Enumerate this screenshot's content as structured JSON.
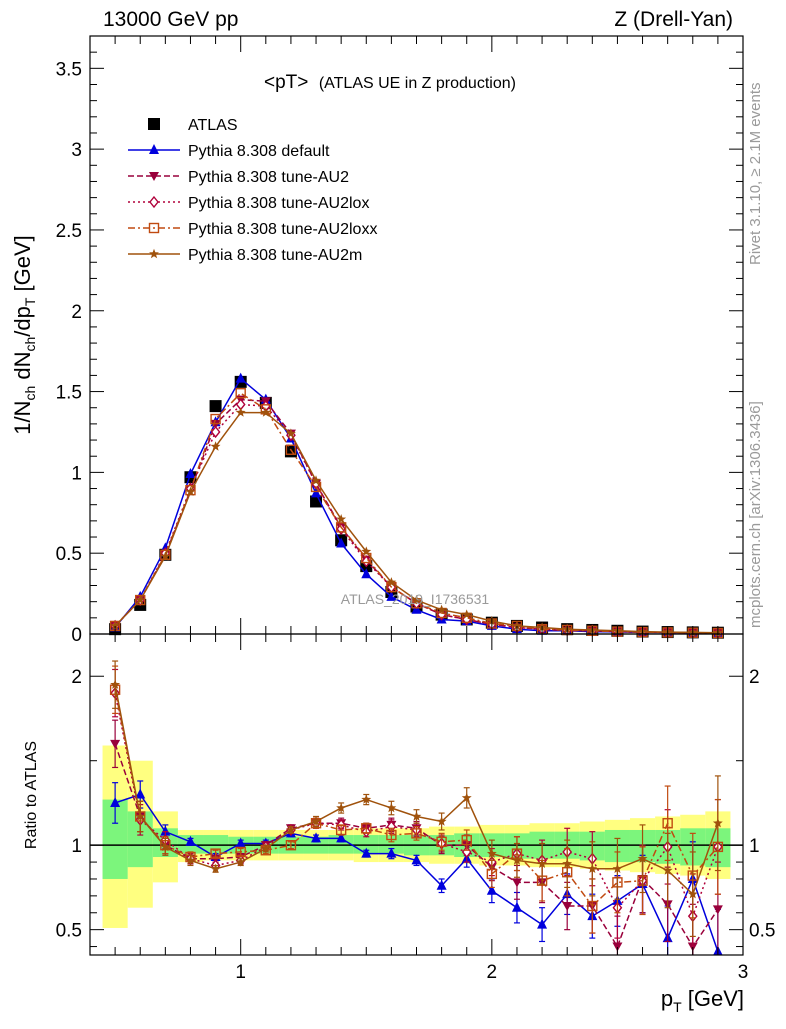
{
  "header": {
    "left": "13000 GeV pp",
    "right": "Z (Drell-Yan)"
  },
  "side": {
    "rivet": "Rivet 3.1.10, ≥ 2.1M events",
    "mcplots": "mcplots.cern.ch [arXiv:1306.3436]"
  },
  "colors": {
    "ATLAS": "#000000",
    "default": "#0000dd",
    "AU2": "#99003b",
    "AU2lox": "#b0003a",
    "AU2loxx": "#c04a10",
    "AU2m": "#a0520c",
    "band_inner": "#7cf57c",
    "band_outer": "#ffff80"
  },
  "chart_data": [
    {
      "type": "line",
      "panel": "main",
      "title": "<pT> (ATLAS UE in Z production)",
      "title_main": "<pT>",
      "title_sub": "(ATLAS UE in Z production)",
      "xlabel": "p_T [GeV]",
      "ylabel": "1/N_ch dN_ch/dp_T [GeV]",
      "xlim": [
        0.4,
        3.0
      ],
      "ylim": [
        0,
        3.7
      ],
      "yticks": [
        0,
        0.5,
        1,
        1.5,
        2,
        2.5,
        3,
        3.5
      ],
      "ytick_labels": [
        "0",
        "0.5",
        "1",
        "1.5",
        "2",
        "2.5",
        "3",
        "3.5"
      ],
      "watermark": "ATLAS_2019_I1736531",
      "x": [
        0.5,
        0.6,
        0.7,
        0.8,
        0.9,
        1.0,
        1.1,
        1.2,
        1.3,
        1.4,
        1.5,
        1.6,
        1.7,
        1.8,
        1.9,
        2.0,
        2.1,
        2.2,
        2.3,
        2.4,
        2.5,
        2.6,
        2.7,
        2.8,
        2.9
      ],
      "series": [
        {
          "key": "ATLAS",
          "name": "ATLAS",
          "style": "data",
          "values": [
            0.03,
            0.18,
            0.49,
            0.97,
            1.41,
            1.56,
            1.43,
            1.13,
            0.82,
            0.58,
            0.42,
            0.26,
            0.17,
            0.12,
            0.09,
            0.07,
            0.05,
            0.04,
            0.03,
            0.025,
            0.02,
            0.015,
            0.012,
            0.01,
            0.008
          ]
        },
        {
          "key": "default",
          "name": "Pythia 8.308 default",
          "style": "solid",
          "marker": "triangle-up",
          "values": [
            0.04,
            0.23,
            0.53,
            0.99,
            1.31,
            1.58,
            1.45,
            1.21,
            0.87,
            0.56,
            0.37,
            0.23,
            0.15,
            0.09,
            0.08,
            0.05,
            0.03,
            0.02,
            0.02,
            0.015,
            0.013,
            0.01,
            0.01,
            0.008,
            0.006
          ]
        },
        {
          "key": "AU2",
          "name": "Pythia 8.308 tune-AU2",
          "style": "dash",
          "marker": "triangle-down",
          "values": [
            0.05,
            0.21,
            0.49,
            0.89,
            1.3,
            1.45,
            1.44,
            1.24,
            0.93,
            0.66,
            0.46,
            0.29,
            0.19,
            0.12,
            0.09,
            0.06,
            0.04,
            0.03,
            0.02,
            0.02,
            0.015,
            0.012,
            0.01,
            0.008,
            0.006
          ]
        },
        {
          "key": "AU2lox",
          "name": "Pythia 8.308 tune-AU2lox",
          "style": "dot",
          "marker": "diamond-open",
          "values": [
            0.05,
            0.21,
            0.5,
            0.9,
            1.25,
            1.42,
            1.41,
            1.23,
            0.93,
            0.65,
            0.45,
            0.29,
            0.19,
            0.12,
            0.09,
            0.06,
            0.04,
            0.03,
            0.025,
            0.02,
            0.015,
            0.012,
            0.01,
            0.008,
            0.006
          ]
        },
        {
          "key": "AU2loxx",
          "name": "Pythia 8.308 tune-AU2loxx",
          "style": "dashdot",
          "marker": "square-open",
          "values": [
            0.05,
            0.21,
            0.49,
            0.89,
            1.33,
            1.49,
            1.39,
            1.14,
            0.91,
            0.66,
            0.47,
            0.29,
            0.19,
            0.13,
            0.1,
            0.065,
            0.05,
            0.03,
            0.025,
            0.02,
            0.015,
            0.012,
            0.01,
            0.008,
            0.006
          ]
        },
        {
          "key": "AU2m",
          "name": "Pythia 8.308 tune-AU2m",
          "style": "solid",
          "marker": "star",
          "values": [
            0.05,
            0.21,
            0.48,
            0.88,
            1.16,
            1.37,
            1.37,
            1.24,
            0.95,
            0.71,
            0.51,
            0.32,
            0.21,
            0.15,
            0.12,
            0.08,
            0.05,
            0.04,
            0.03,
            0.025,
            0.02,
            0.015,
            0.012,
            0.01,
            0.008
          ]
        }
      ]
    },
    {
      "type": "line",
      "panel": "ratio",
      "title": "",
      "xlabel": "p_T [GeV]",
      "ylabel": "Ratio to ATLAS",
      "xlim": [
        0.4,
        3.0
      ],
      "ylim": [
        0.35,
        2.25
      ],
      "yticks": [
        0.5,
        1,
        2
      ],
      "ytick_labels": [
        "0.5",
        "1",
        "2"
      ],
      "xticks": [
        1,
        2,
        3
      ],
      "xtick_labels": [
        "1",
        "2",
        "3"
      ],
      "reference": 1.0,
      "x": [
        0.5,
        0.6,
        0.7,
        0.8,
        0.9,
        1.0,
        1.1,
        1.2,
        1.3,
        1.4,
        1.5,
        1.6,
        1.7,
        1.8,
        1.9,
        2.0,
        2.1,
        2.2,
        2.3,
        2.4,
        2.5,
        2.6,
        2.7,
        2.8,
        2.9
      ],
      "band_edges": [
        0.45,
        0.55,
        0.65,
        0.75,
        0.85,
        0.95,
        1.05,
        1.15,
        1.25,
        1.35,
        1.45,
        1.55,
        1.65,
        1.75,
        1.85,
        1.95,
        2.05,
        2.15,
        2.25,
        2.35,
        2.45,
        2.55,
        2.65,
        2.75,
        2.85,
        2.95
      ],
      "band_inner": [
        [
          0.8,
          1.27
        ],
        [
          0.87,
          1.2
        ],
        [
          0.93,
          1.1
        ],
        [
          0.95,
          1.06
        ],
        [
          0.95,
          1.06
        ],
        [
          0.95,
          1.05
        ],
        [
          0.95,
          1.05
        ],
        [
          0.95,
          1.05
        ],
        [
          0.95,
          1.05
        ],
        [
          0.95,
          1.06
        ],
        [
          0.95,
          1.06
        ],
        [
          0.95,
          1.06
        ],
        [
          0.94,
          1.06
        ],
        [
          0.94,
          1.06
        ],
        [
          0.93,
          1.07
        ],
        [
          0.93,
          1.07
        ],
        [
          0.92,
          1.07
        ],
        [
          0.92,
          1.08
        ],
        [
          0.92,
          1.08
        ],
        [
          0.91,
          1.08
        ],
        [
          0.9,
          1.09
        ],
        [
          0.9,
          1.09
        ],
        [
          0.89,
          1.09
        ],
        [
          0.88,
          1.1
        ],
        [
          0.87,
          1.1
        ]
      ],
      "band_outer": [
        [
          0.51,
          1.59
        ],
        [
          0.63,
          1.5
        ],
        [
          0.78,
          1.2
        ],
        [
          0.9,
          1.09
        ],
        [
          0.91,
          1.09
        ],
        [
          0.91,
          1.09
        ],
        [
          0.91,
          1.09
        ],
        [
          0.91,
          1.09
        ],
        [
          0.91,
          1.09
        ],
        [
          0.91,
          1.09
        ],
        [
          0.9,
          1.1
        ],
        [
          0.9,
          1.1
        ],
        [
          0.9,
          1.1
        ],
        [
          0.89,
          1.11
        ],
        [
          0.89,
          1.11
        ],
        [
          0.88,
          1.12
        ],
        [
          0.88,
          1.12
        ],
        [
          0.87,
          1.13
        ],
        [
          0.87,
          1.13
        ],
        [
          0.86,
          1.14
        ],
        [
          0.85,
          1.15
        ],
        [
          0.84,
          1.16
        ],
        [
          0.83,
          1.17
        ],
        [
          0.82,
          1.18
        ],
        [
          0.8,
          1.2
        ]
      ],
      "series": [
        {
          "key": "default",
          "name": "Pythia 8.308 default",
          "values": [
            1.25,
            1.3,
            1.08,
            1.02,
            0.93,
            1.01,
            1.01,
            1.07,
            1.04,
            1.04,
            0.95,
            0.95,
            0.91,
            0.76,
            0.92,
            0.73,
            0.63,
            0.53,
            0.71,
            0.58,
            0.67,
            0.77,
            0.45,
            0.8,
            0.37
          ],
          "errors": [
            0.12,
            0.08,
            0.04,
            0.02,
            0.02,
            0.02,
            0.02,
            0.02,
            0.02,
            0.02,
            0.02,
            0.03,
            0.03,
            0.04,
            0.05,
            0.07,
            0.09,
            0.1,
            0.12,
            0.13,
            0.15,
            0.17,
            0.19,
            0.22,
            0.25
          ]
        },
        {
          "key": "AU2",
          "name": "Pythia 8.308 tune-AU2",
          "values": [
            1.6,
            1.17,
            1.0,
            0.92,
            0.92,
            0.93,
            1.0,
            1.1,
            1.13,
            1.13,
            1.1,
            1.12,
            1.1,
            1.0,
            1.0,
            0.87,
            0.78,
            0.78,
            0.64,
            0.64,
            0.4,
            0.8,
            0.65,
            0.4,
            0.62
          ],
          "errors": [
            0.14,
            0.09,
            0.05,
            0.03,
            0.02,
            0.02,
            0.02,
            0.02,
            0.03,
            0.03,
            0.03,
            0.04,
            0.04,
            0.05,
            0.06,
            0.08,
            0.1,
            0.12,
            0.14,
            0.16,
            0.18,
            0.2,
            0.22,
            0.25,
            0.28
          ]
        },
        {
          "key": "AU2lox",
          "name": "Pythia 8.308 tune-AU2lox",
          "values": [
            1.9,
            1.15,
            1.03,
            0.92,
            0.88,
            0.91,
            0.99,
            1.09,
            1.13,
            1.12,
            1.08,
            1.11,
            1.09,
            1.01,
            0.96,
            0.9,
            0.95,
            0.91,
            0.96,
            0.92,
            0.63,
            0.79,
            0.99,
            0.58,
            0.99
          ],
          "errors": [
            0.14,
            0.09,
            0.05,
            0.03,
            0.02,
            0.02,
            0.02,
            0.02,
            0.03,
            0.03,
            0.03,
            0.04,
            0.04,
            0.05,
            0.06,
            0.08,
            0.1,
            0.12,
            0.14,
            0.16,
            0.18,
            0.2,
            0.22,
            0.25,
            0.28
          ]
        },
        {
          "key": "AU2loxx",
          "name": "Pythia 8.308 tune-AU2loxx",
          "values": [
            1.92,
            1.17,
            1.0,
            0.93,
            0.95,
            0.96,
            0.97,
            1.0,
            1.13,
            1.09,
            1.1,
            1.06,
            1.07,
            1.02,
            1.03,
            0.83,
            0.95,
            0.79,
            0.84,
            0.64,
            0.78,
            0.79,
            1.13,
            0.82,
            0.99
          ],
          "errors": [
            0.14,
            0.09,
            0.05,
            0.03,
            0.02,
            0.02,
            0.02,
            0.02,
            0.03,
            0.03,
            0.03,
            0.04,
            0.04,
            0.05,
            0.06,
            0.08,
            0.1,
            0.12,
            0.14,
            0.16,
            0.18,
            0.2,
            0.22,
            0.25,
            0.28
          ]
        },
        {
          "key": "AU2m",
          "name": "Pythia 8.308 tune-AU2m",
          "values": [
            1.95,
            1.17,
            0.99,
            0.91,
            0.86,
            0.9,
            0.98,
            1.09,
            1.14,
            1.22,
            1.27,
            1.22,
            1.17,
            1.14,
            1.28,
            0.95,
            0.91,
            0.89,
            0.89,
            0.86,
            0.86,
            0.92,
            0.85,
            0.71,
            1.13
          ],
          "errors": [
            0.14,
            0.09,
            0.05,
            0.03,
            0.02,
            0.02,
            0.02,
            0.02,
            0.03,
            0.03,
            0.03,
            0.04,
            0.04,
            0.05,
            0.06,
            0.08,
            0.1,
            0.12,
            0.14,
            0.16,
            0.18,
            0.2,
            0.22,
            0.25,
            0.28
          ]
        }
      ]
    }
  ]
}
